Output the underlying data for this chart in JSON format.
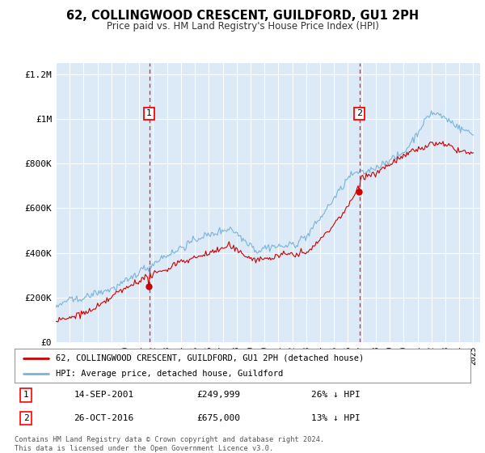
{
  "title": "62, COLLINGWOOD CRESCENT, GUILDFORD, GU1 2PH",
  "subtitle": "Price paid vs. HM Land Registry's House Price Index (HPI)",
  "fig_bg": "#ffffff",
  "plot_bg": "#dce9f7",
  "hpi_color": "#7ab4d8",
  "price_color": "#cc0000",
  "grid_color": "#ffffff",
  "marker1_x": 2001.71,
  "marker2_x": 2016.82,
  "marker1_price": 249999,
  "marker2_price": 675000,
  "marker1_date_str": "14-SEP-2001",
  "marker2_date_str": "26-OCT-2016",
  "marker1_pct": "26% ↓ HPI",
  "marker2_pct": "13% ↓ HPI",
  "legend_line1": "62, COLLINGWOOD CRESCENT, GUILDFORD, GU1 2PH (detached house)",
  "legend_line2": "HPI: Average price, detached house, Guildford",
  "footer": "Contains HM Land Registry data © Crown copyright and database right 2024.\nThis data is licensed under the Open Government Licence v3.0.",
  "ylim_max": 1250000,
  "xlim_min": 1995.0,
  "xlim_max": 2025.5,
  "yticks": [
    0,
    200000,
    400000,
    600000,
    800000,
    1000000,
    1200000
  ],
  "ytick_labels": [
    "£0",
    "£200K",
    "£400K",
    "£600K",
    "£800K",
    "£1M",
    "£1.2M"
  ]
}
